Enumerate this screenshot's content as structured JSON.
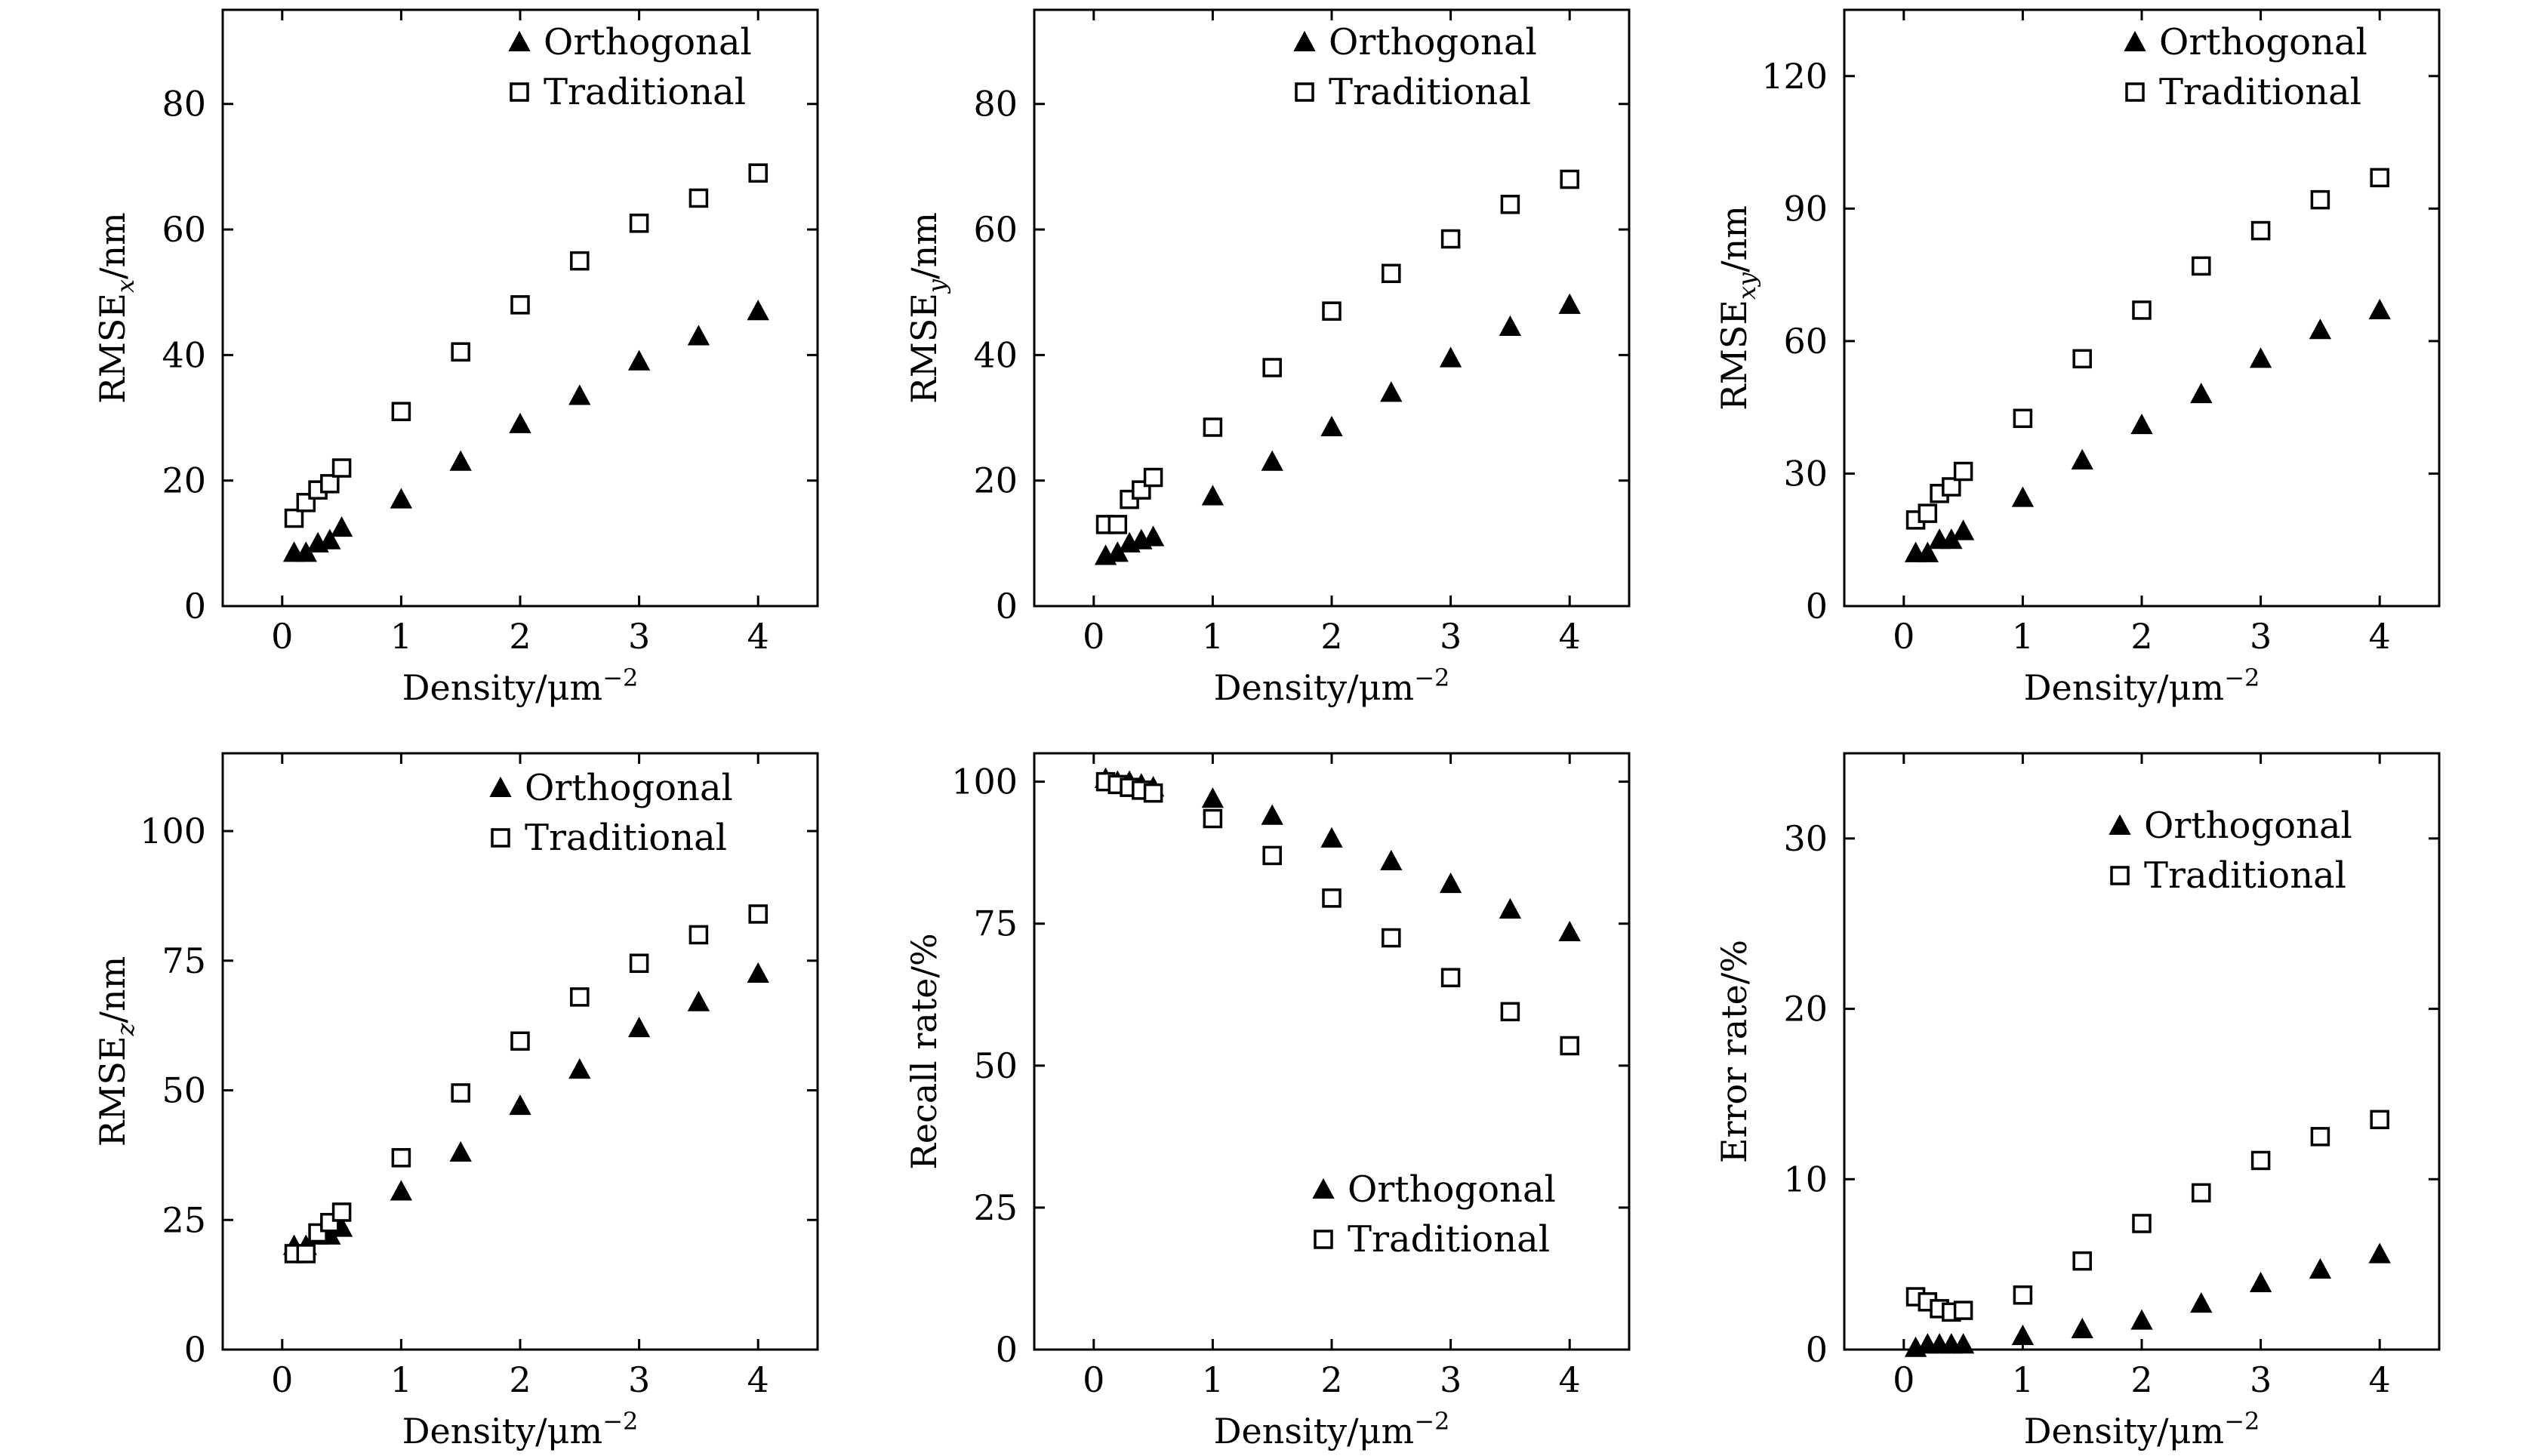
{
  "legend": {
    "orthogonal": "Orthogonal",
    "traditional": "Traditional"
  },
  "colors": {
    "orthogonal_marker": "#000000",
    "traditional_marker": "#ffffff",
    "axes": "#000000"
  },
  "chart_data": [
    {
      "type": "scatter",
      "xlabel": "Density/μm",
      "xlabel_sup": "−2",
      "ylabel": "RMSE",
      "ylabel_sub": "x",
      "ylabel_suffix": "/nm",
      "xlim": [
        -0.5,
        4.5
      ],
      "ylim": [
        0,
        95
      ],
      "xticks": [
        0,
        1,
        2,
        3,
        4
      ],
      "yticks": [
        0,
        20,
        40,
        60,
        80
      ],
      "grid": false,
      "legend_position": "top-right",
      "series": [
        {
          "name": "Orthogonal",
          "marker": "triangle",
          "x": [
            0.1,
            0.2,
            0.3,
            0.4,
            0.5,
            1,
            1.5,
            2,
            2.5,
            3,
            3.5,
            4
          ],
          "y": [
            8.5,
            8.5,
            10,
            10.5,
            12.5,
            17,
            23,
            29,
            33.5,
            39,
            43,
            47
          ]
        },
        {
          "name": "Traditional",
          "marker": "square",
          "x": [
            0.1,
            0.2,
            0.3,
            0.4,
            0.5,
            1,
            1.5,
            2,
            2.5,
            3,
            3.5,
            4
          ],
          "y": [
            14,
            16.5,
            18.5,
            19.5,
            22,
            31,
            40.5,
            48,
            55,
            61,
            65,
            69
          ]
        }
      ]
    },
    {
      "type": "scatter",
      "xlabel": "Density/μm",
      "xlabel_sup": "−2",
      "ylabel": "RMSE",
      "ylabel_sub": "y",
      "ylabel_suffix": "/nm",
      "xlim": [
        -0.5,
        4.5
      ],
      "ylim": [
        0,
        95
      ],
      "xticks": [
        0,
        1,
        2,
        3,
        4
      ],
      "yticks": [
        0,
        20,
        40,
        60,
        80
      ],
      "grid": false,
      "legend_position": "top-right",
      "series": [
        {
          "name": "Orthogonal",
          "marker": "triangle",
          "x": [
            0.1,
            0.2,
            0.3,
            0.4,
            0.5,
            1,
            1.5,
            2,
            2.5,
            3,
            3.5,
            4
          ],
          "y": [
            8,
            8.5,
            10,
            10.5,
            11,
            17.5,
            23,
            28.5,
            34,
            39.5,
            44.5,
            48
          ]
        },
        {
          "name": "Traditional",
          "marker": "square",
          "x": [
            0.1,
            0.2,
            0.3,
            0.4,
            0.5,
            1,
            1.5,
            2,
            2.5,
            3,
            3.5,
            4
          ],
          "y": [
            13,
            13,
            17,
            18.5,
            20.5,
            28.5,
            38,
            47,
            53,
            58.5,
            64,
            68
          ]
        }
      ]
    },
    {
      "type": "scatter",
      "xlabel": "Density/μm",
      "xlabel_sup": "−2",
      "ylabel": "RMSE",
      "ylabel_sub": "xy",
      "ylabel_suffix": "/nm",
      "xlim": [
        -0.5,
        4.5
      ],
      "ylim": [
        0,
        135
      ],
      "xticks": [
        0,
        1,
        2,
        3,
        4
      ],
      "yticks": [
        0,
        30,
        60,
        90,
        120
      ],
      "grid": false,
      "legend_position": "top-right",
      "series": [
        {
          "name": "Orthogonal",
          "marker": "triangle",
          "x": [
            0.1,
            0.2,
            0.3,
            0.4,
            0.5,
            1,
            1.5,
            2,
            2.5,
            3,
            3.5,
            4
          ],
          "y": [
            12,
            12,
            15,
            15,
            17,
            24.5,
            33,
            41,
            48,
            56,
            62.5,
            67
          ]
        },
        {
          "name": "Traditional",
          "marker": "square",
          "x": [
            0.1,
            0.2,
            0.3,
            0.4,
            0.5,
            1,
            1.5,
            2,
            2.5,
            3,
            3.5,
            4
          ],
          "y": [
            19.5,
            21,
            25.5,
            27,
            30.5,
            42.5,
            56,
            67,
            77,
            85,
            92,
            97
          ]
        }
      ]
    },
    {
      "type": "scatter",
      "xlabel": "Density/μm",
      "xlabel_sup": "−2",
      "ylabel": "RMSE",
      "ylabel_sub": "z",
      "ylabel_suffix": "/nm",
      "xlim": [
        -0.5,
        4.5
      ],
      "ylim": [
        0,
        115
      ],
      "xticks": [
        0,
        1,
        2,
        3,
        4
      ],
      "yticks": [
        0,
        25,
        50,
        75,
        100
      ],
      "grid": false,
      "legend_position": "top-right",
      "series": [
        {
          "name": "Orthogonal",
          "marker": "triangle",
          "x": [
            0.1,
            0.2,
            0.3,
            0.4,
            0.5,
            1,
            1.5,
            2,
            2.5,
            3,
            3.5,
            4
          ],
          "y": [
            20,
            20,
            22,
            22,
            23.5,
            30.5,
            38,
            47,
            54,
            62,
            67,
            72.5
          ]
        },
        {
          "name": "Traditional",
          "marker": "square",
          "x": [
            0.1,
            0.2,
            0.3,
            0.4,
            0.5,
            1,
            1.5,
            2,
            2.5,
            3,
            3.5,
            4
          ],
          "y": [
            18.5,
            18.5,
            22.5,
            24.5,
            26.5,
            37,
            49.5,
            59.5,
            68,
            74.5,
            80,
            84
          ]
        }
      ]
    },
    {
      "type": "scatter",
      "xlabel": "Density/μm",
      "xlabel_sup": "−2",
      "ylabel": "Recall rate/%",
      "ylabel_sub": "",
      "ylabel_suffix": "",
      "xlim": [
        -0.5,
        4.5
      ],
      "ylim": [
        0,
        105
      ],
      "xticks": [
        0,
        1,
        2,
        3,
        4
      ],
      "yticks": [
        0,
        25,
        50,
        75,
        100
      ],
      "grid": false,
      "legend_position": "bottom-right",
      "series": [
        {
          "name": "Orthogonal",
          "marker": "triangle",
          "x": [
            0.1,
            0.2,
            0.3,
            0.4,
            0.5,
            1,
            1.5,
            2,
            2.5,
            3,
            3.5,
            4
          ],
          "y": [
            100.5,
            100,
            100,
            99.5,
            99,
            97,
            94,
            90,
            86,
            82,
            77.5,
            73.5
          ]
        },
        {
          "name": "Traditional",
          "marker": "square",
          "x": [
            0.1,
            0.2,
            0.3,
            0.4,
            0.5,
            1,
            1.5,
            2,
            2.5,
            3,
            3.5,
            4
          ],
          "y": [
            100,
            99.5,
            99,
            98.5,
            98,
            93.5,
            87,
            79.5,
            72.5,
            65.5,
            59.5,
            53.5
          ]
        }
      ]
    },
    {
      "type": "scatter",
      "xlabel": "Density/μm",
      "xlabel_sup": "−2",
      "ylabel": "Error rate/%",
      "ylabel_sub": "",
      "ylabel_suffix": "",
      "xlim": [
        -0.5,
        4.5
      ],
      "ylim": [
        0,
        35
      ],
      "xticks": [
        0,
        1,
        2,
        3,
        4
      ],
      "yticks": [
        0,
        10,
        20,
        30
      ],
      "grid": false,
      "legend_position": "top-right",
      "series": [
        {
          "name": "Orthogonal",
          "marker": "triangle",
          "x": [
            0.1,
            0.2,
            0.3,
            0.4,
            0.5,
            1,
            1.5,
            2,
            2.5,
            3,
            3.5,
            4
          ],
          "y": [
            0.1,
            0.3,
            0.3,
            0.3,
            0.3,
            0.8,
            1.2,
            1.7,
            2.7,
            3.9,
            4.7,
            5.6
          ]
        },
        {
          "name": "Traditional",
          "marker": "square",
          "x": [
            0.1,
            0.2,
            0.3,
            0.4,
            0.5,
            1,
            1.5,
            2,
            2.5,
            3,
            3.5,
            4
          ],
          "y": [
            3.1,
            2.8,
            2.4,
            2.2,
            2.3,
            3.2,
            5.2,
            7.4,
            9.2,
            11.1,
            12.5,
            13.5
          ]
        }
      ]
    }
  ]
}
